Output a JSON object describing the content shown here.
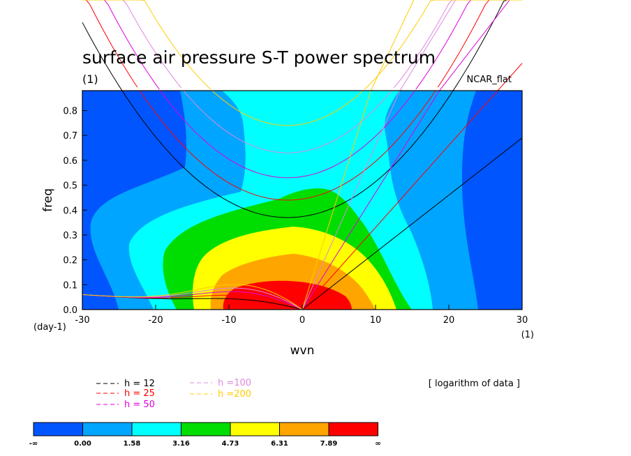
{
  "chart_data": {
    "type": "heatmap",
    "title": "surface air pressure S-T power spectrum",
    "units": "(1)",
    "dataset_label": "NCAR_flat",
    "xlabel": "wvn",
    "ylabel": "freq",
    "x_units_left": "(day-1)",
    "x_units_right": "(1)",
    "xlim": [
      -30,
      30
    ],
    "ylim": [
      0,
      0.88
    ],
    "xticks": [
      -30,
      -20,
      -10,
      0,
      10,
      20,
      30
    ],
    "yticks": [
      0.0,
      0.1,
      0.2,
      0.3,
      0.4,
      0.5,
      0.6,
      0.7,
      0.8
    ],
    "ytick_labels": [
      "0.0",
      "0.1",
      "0.2",
      "0.3",
      "0.4",
      "0.5",
      "0.6",
      "0.7",
      "0.8"
    ],
    "note": "[ logarithm of data ]",
    "colorbar": {
      "labels": [
        "-∞",
        "0.00",
        "1.58",
        "3.16",
        "4.73",
        "6.31",
        "7.89",
        "∞"
      ],
      "colors": [
        "#0055ff",
        "#00a5ff",
        "#00ffff",
        "#00dd00",
        "#ffff00",
        "#ffa500",
        "#ff0000"
      ]
    },
    "contour_levels": [
      0.0,
      1.58,
      3.16,
      4.73,
      6.31,
      7.89
    ],
    "dispersion_curves": [
      {
        "name": "h = 12",
        "color": "#000000",
        "gravity_min_freq": 0.37,
        "kelvin_slope": 0.023,
        "mrg_at_-30": 0.06
      },
      {
        "name": "h = 25",
        "color": "#ff0000",
        "gravity_min_freq": 0.44,
        "kelvin_slope": 0.033,
        "mrg_at_-30": 0.06
      },
      {
        "name": "h = 50",
        "color": "#dd00dd",
        "gravity_min_freq": 0.53,
        "kelvin_slope": 0.047,
        "mrg_at_-30": 0.06
      },
      {
        "name": "h =100",
        "color": "#dd88dd",
        "gravity_min_freq": 0.63,
        "kelvin_slope": 0.066,
        "mrg_at_-30": 0.06
      },
      {
        "name": "h =200",
        "color": "#ffcc00",
        "gravity_min_freq": 0.74,
        "kelvin_slope": 0.094,
        "mrg_at_-30": 0.06
      }
    ]
  }
}
